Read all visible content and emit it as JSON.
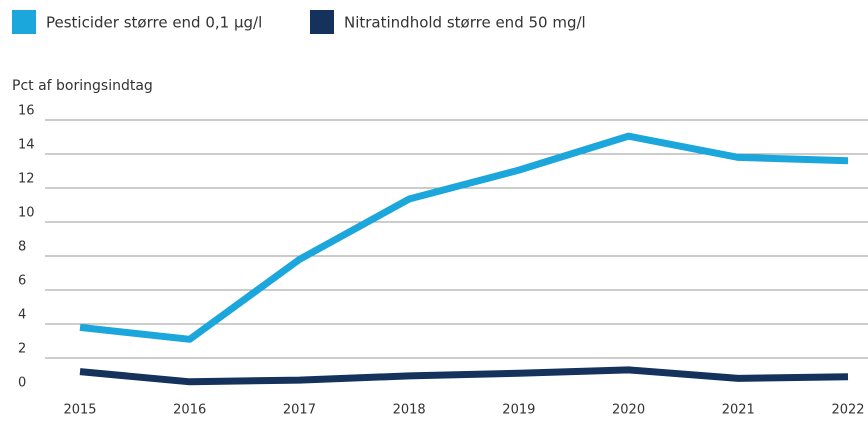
{
  "chart_data": {
    "type": "line",
    "y_label": "Pct af boringsindtag",
    "categories": [
      "2015",
      "2016",
      "2017",
      "2018",
      "2019",
      "2020",
      "2021",
      "2022"
    ],
    "series": [
      {
        "name": "Pesticider større end 0,1 µg/l",
        "color": "#1ba6dc",
        "values": [
          3.8,
          3.1,
          7.8,
          11.35,
          13.05,
          15.05,
          13.8,
          13.6
        ]
      },
      {
        "name": "Nitratindhold større end 50 mg/l",
        "color": "#14325c",
        "values": [
          1.2,
          0.6,
          0.7,
          0.95,
          1.1,
          1.3,
          0.8,
          0.9
        ]
      }
    ],
    "ylim": [
      0,
      16
    ],
    "yticks": [
      0,
      2,
      4,
      6,
      8,
      10,
      12,
      14,
      16
    ],
    "grid": true,
    "legend": "top"
  }
}
